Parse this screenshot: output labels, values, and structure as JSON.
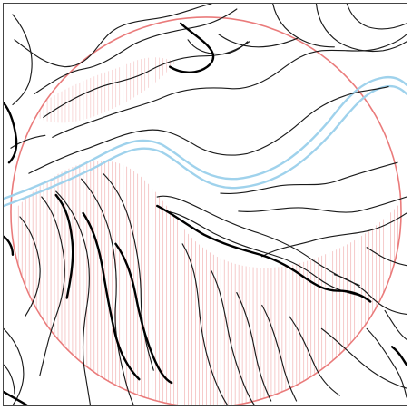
{
  "map": {
    "title": "",
    "colors": {
      "background": "#ffffff",
      "contour": "#1a1a1a",
      "contour_index": "#000000",
      "river": "#9fd2ec",
      "viewshed_circle": "#ea7b7b",
      "hatching": "#e97f7f"
    },
    "legend": []
  }
}
